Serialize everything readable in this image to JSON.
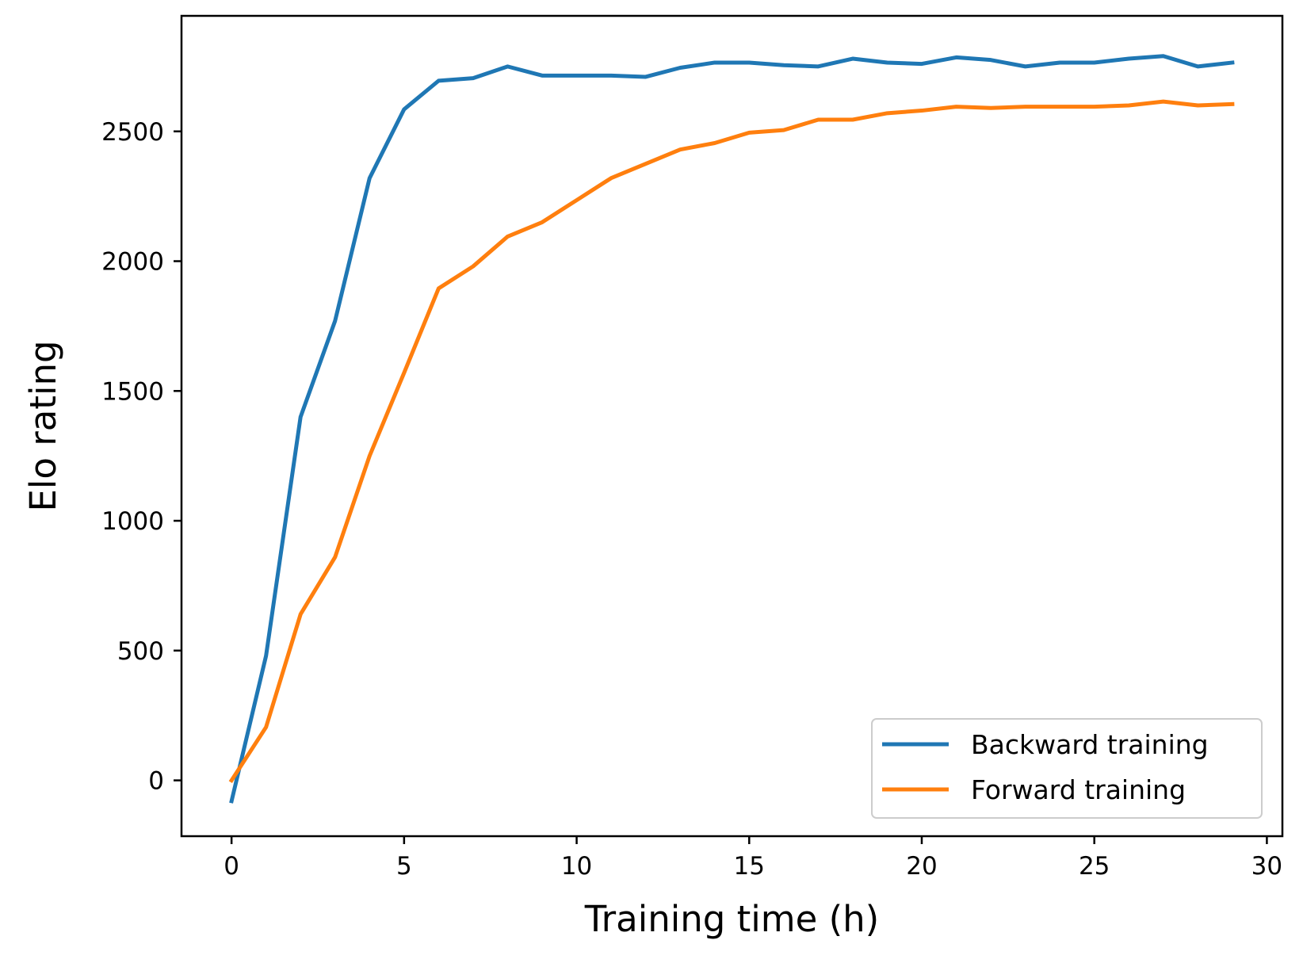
{
  "chart_data": {
    "type": "line",
    "title": "",
    "xlabel": "Training time (h)",
    "ylabel": "Elo rating",
    "xlim": [
      -1.45,
      30.45
    ],
    "ylim": [
      -215,
      2945
    ],
    "xticks": [
      0,
      5,
      10,
      15,
      20,
      25,
      30
    ],
    "yticks": [
      0,
      500,
      1000,
      1500,
      2000,
      2500
    ],
    "grid": false,
    "legend_position": "lower-right",
    "x": [
      0,
      1,
      2,
      3,
      4,
      5,
      6,
      7,
      8,
      9,
      10,
      11,
      12,
      13,
      14,
      15,
      16,
      17,
      18,
      19,
      20,
      21,
      22,
      23,
      24,
      25,
      26,
      27,
      28,
      29
    ],
    "series": [
      {
        "name": "Backward training",
        "color": "#1f77b4",
        "values": [
          -80,
          480,
          1400,
          1770,
          2320,
          2585,
          2695,
          2705,
          2750,
          2715,
          2715,
          2715,
          2710,
          2745,
          2765,
          2765,
          2755,
          2750,
          2780,
          2765,
          2760,
          2785,
          2775,
          2750,
          2765,
          2765,
          2780,
          2790,
          2750,
          2765
        ]
      },
      {
        "name": "Forward training",
        "color": "#ff7f0e",
        "values": [
          0,
          205,
          640,
          860,
          1250,
          1570,
          1895,
          1980,
          2095,
          2150,
          2235,
          2320,
          2375,
          2430,
          2455,
          2495,
          2505,
          2545,
          2545,
          2570,
          2580,
          2595,
          2590,
          2595,
          2595,
          2595,
          2600,
          2615,
          2600,
          2605
        ]
      }
    ]
  }
}
